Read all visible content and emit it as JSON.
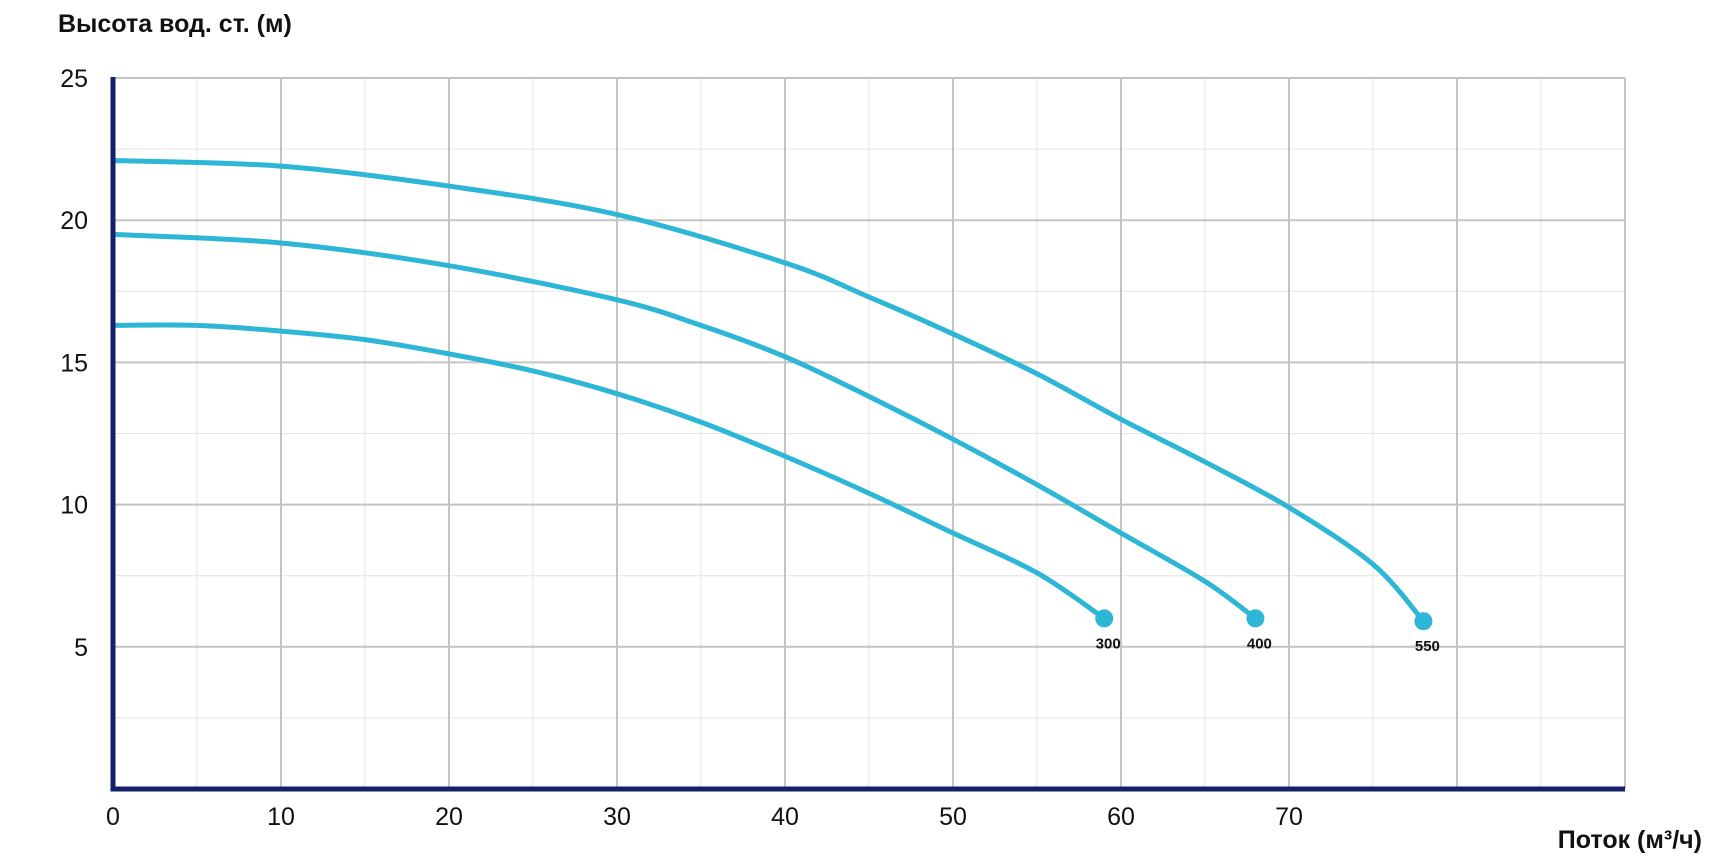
{
  "chart_data": {
    "type": "line",
    "ylabel": "Высота вод. ст. (м)",
    "xlabel": "Поток (м³/ч)",
    "xlim": [
      0,
      90
    ],
    "ylim": [
      0,
      25
    ],
    "x_ticks": [
      "0",
      "10",
      "20",
      "30",
      "40",
      "50",
      "60",
      "70"
    ],
    "y_ticks": [
      "5",
      "10",
      "15",
      "20",
      "25"
    ],
    "grid": true,
    "colors": {
      "line": "#2db6d6",
      "axis": "#14206b",
      "grid_major": "#c4c4c4",
      "grid_minor": "#e4e4e4"
    },
    "series": [
      {
        "name": "300",
        "x": [
          0,
          5,
          10,
          15,
          20,
          25,
          30,
          35,
          40,
          45,
          50,
          55,
          59
        ],
        "y": [
          16.3,
          16.3,
          16.1,
          15.8,
          15.3,
          14.7,
          13.9,
          12.9,
          11.7,
          10.4,
          9.0,
          7.6,
          6.0
        ]
      },
      {
        "name": "400",
        "x": [
          0,
          10,
          20,
          30,
          35,
          40,
          45,
          50,
          55,
          60,
          65,
          68
        ],
        "y": [
          19.5,
          19.2,
          18.4,
          17.2,
          16.3,
          15.2,
          13.8,
          12.3,
          10.7,
          9.0,
          7.3,
          6.0
        ]
      },
      {
        "name": "550",
        "x": [
          0,
          10,
          20,
          30,
          40,
          45,
          50,
          55,
          60,
          65,
          70,
          75,
          78
        ],
        "y": [
          22.1,
          21.9,
          21.2,
          20.2,
          18.5,
          17.3,
          16.0,
          14.6,
          13.0,
          11.5,
          9.9,
          7.9,
          5.9
        ]
      }
    ]
  }
}
